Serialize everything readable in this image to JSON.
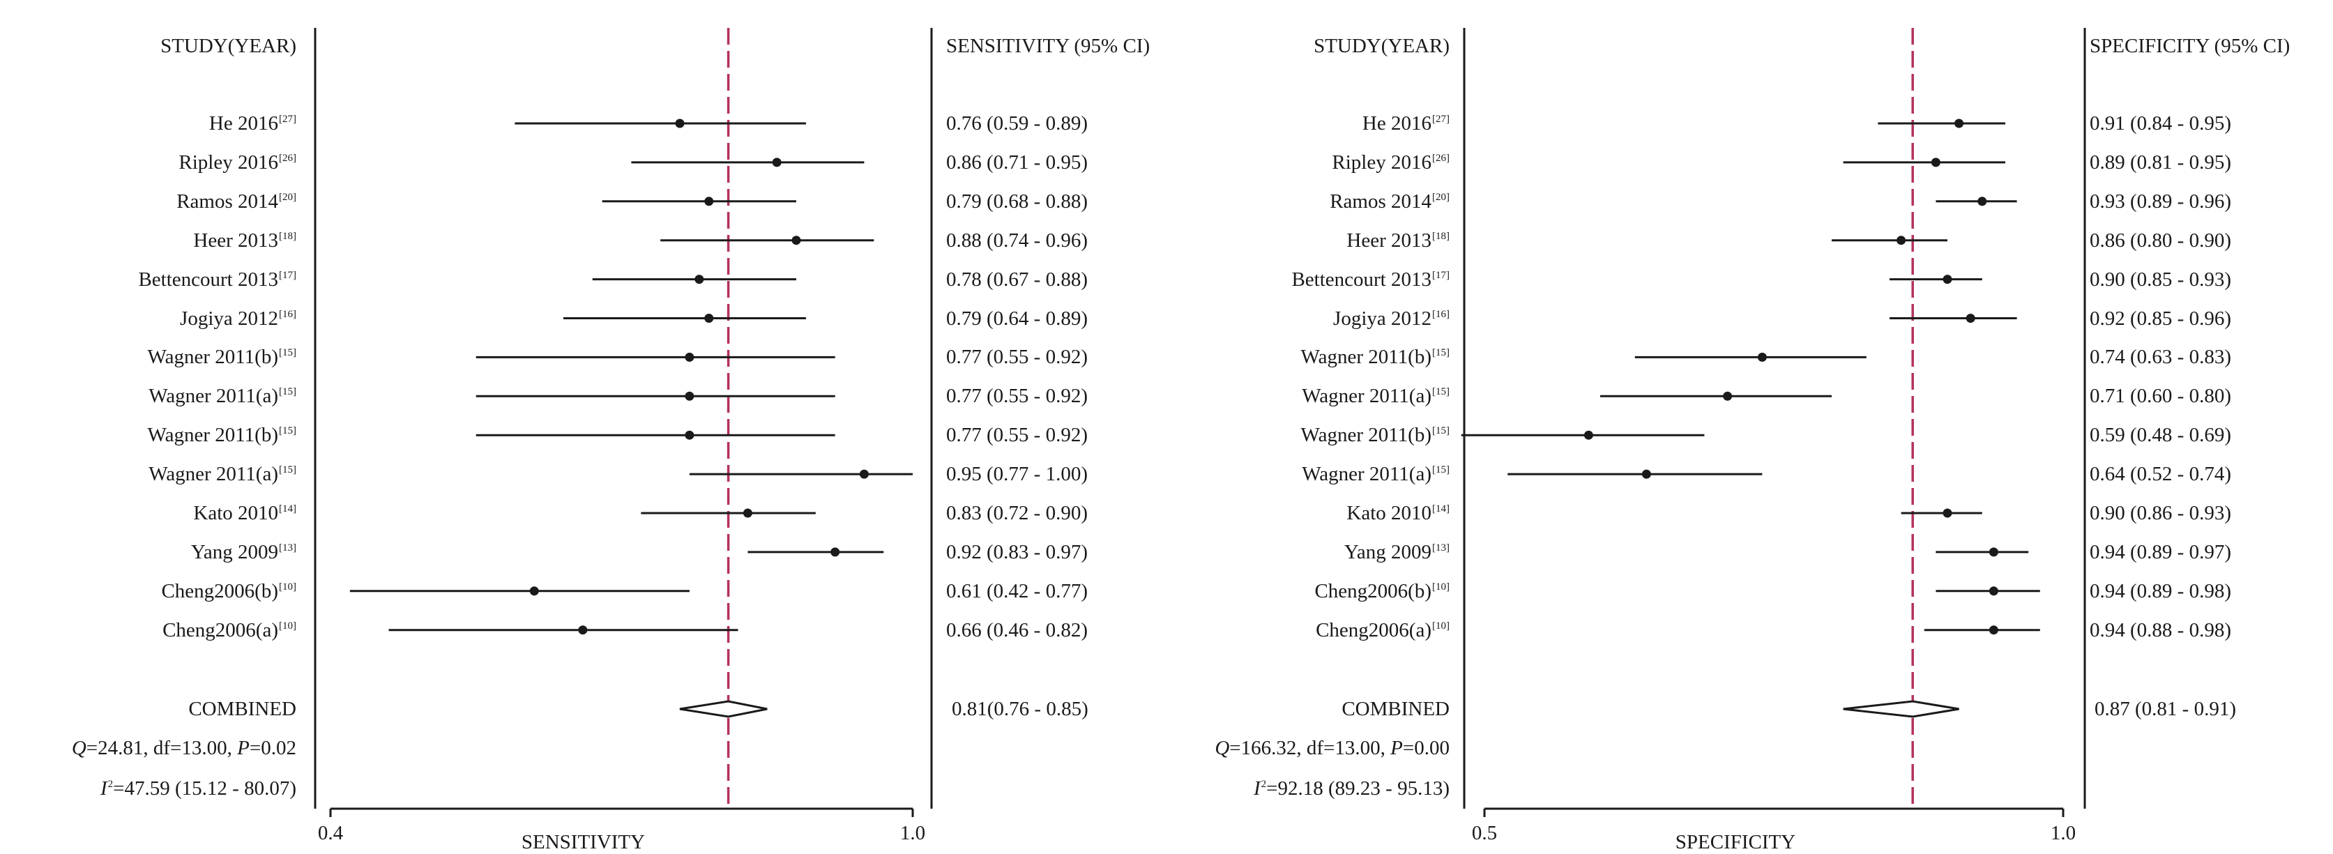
{
  "charts": [
    {
      "id": "sensitivity",
      "study_header": "STUDY(YEAR)",
      "ci_header": "SENSITIVITY (95% CI)",
      "xlabel": "SENSITIVITY",
      "xlim": [
        0.4,
        1.0
      ],
      "tick_labels": [
        "0.4",
        "1.0"
      ],
      "reference_line": 0.81,
      "rows": [
        {
          "name": "He 2016",
          "ref": "[27]",
          "estimate": 0.76,
          "lo": 0.59,
          "hi": 0.89,
          "ci_text": "0.76 (0.59 - 0.89)"
        },
        {
          "name": "Ripley 2016",
          "ref": "[26]",
          "estimate": 0.86,
          "lo": 0.71,
          "hi": 0.95,
          "ci_text": "0.86 (0.71 - 0.95)"
        },
        {
          "name": "Ramos 2014",
          "ref": "[20]",
          "estimate": 0.79,
          "lo": 0.68,
          "hi": 0.88,
          "ci_text": "0.79 (0.68 - 0.88)"
        },
        {
          "name": "Heer 2013",
          "ref": "[18]",
          "estimate": 0.88,
          "lo": 0.74,
          "hi": 0.96,
          "ci_text": "0.88 (0.74 - 0.96)"
        },
        {
          "name": "Bettencourt 2013",
          "ref": "[17]",
          "estimate": 0.78,
          "lo": 0.67,
          "hi": 0.88,
          "ci_text": "0.78 (0.67 - 0.88)"
        },
        {
          "name": "Jogiya 2012",
          "ref": "[16]",
          "estimate": 0.79,
          "lo": 0.64,
          "hi": 0.89,
          "ci_text": "0.79 (0.64 - 0.89)"
        },
        {
          "name": "Wagner 2011(b)",
          "ref": "[15]",
          "estimate": 0.77,
          "lo": 0.55,
          "hi": 0.92,
          "ci_text": "0.77 (0.55 - 0.92)"
        },
        {
          "name": "Wagner 2011(a)",
          "ref": "[15]",
          "estimate": 0.77,
          "lo": 0.55,
          "hi": 0.92,
          "ci_text": "0.77 (0.55 - 0.92)"
        },
        {
          "name": "Wagner 2011(b)",
          "ref": "[15]",
          "estimate": 0.77,
          "lo": 0.55,
          "hi": 0.92,
          "ci_text": "0.77 (0.55 - 0.92)"
        },
        {
          "name": "Wagner 2011(a)",
          "ref": "[15]",
          "estimate": 0.95,
          "lo": 0.77,
          "hi": 1.0,
          "ci_text": "0.95 (0.77 - 1.00)"
        },
        {
          "name": "Kato 2010",
          "ref": "[14]",
          "estimate": 0.83,
          "lo": 0.72,
          "hi": 0.9,
          "ci_text": "0.83 (0.72 - 0.90)"
        },
        {
          "name": "Yang 2009",
          "ref": "[13]",
          "estimate": 0.92,
          "lo": 0.83,
          "hi": 0.97,
          "ci_text": "0.92 (0.83 - 0.97)"
        },
        {
          "name": "Cheng2006(b)",
          "ref": "[10]",
          "estimate": 0.61,
          "lo": 0.42,
          "hi": 0.77,
          "ci_text": "0.61 (0.42 - 0.77)"
        },
        {
          "name": "Cheng2006(a)",
          "ref": "[10]",
          "estimate": 0.66,
          "lo": 0.46,
          "hi": 0.82,
          "ci_text": "0.66 (0.46 - 0.82)"
        }
      ],
      "combined": {
        "label": "COMBINED",
        "estimate": 0.81,
        "lo": 0.76,
        "hi": 0.85,
        "ci_text": "0.81(0.76 - 0.85)"
      },
      "heterogeneity_q": {
        "q_symbol": "Q",
        "q_rest": "=24.81, df=13.00, ",
        "p_symbol": "P",
        "p_rest": "=0.02"
      },
      "heterogeneity_i2": {
        "symbol": "I",
        "sup": "2",
        "rest": "=47.59 (15.12 - 80.07)"
      }
    },
    {
      "id": "specificity",
      "study_header": "STUDY(YEAR)",
      "ci_header": "SPECIFICITY (95% CI)",
      "xlabel": "SPECIFICITY",
      "xlim": [
        0.5,
        1.0
      ],
      "tick_labels": [
        "0.5",
        "1.0"
      ],
      "reference_line": 0.87,
      "rows": [
        {
          "name": "He 2016",
          "ref": "[27]",
          "estimate": 0.91,
          "lo": 0.84,
          "hi": 0.95,
          "ci_text": "0.91 (0.84 - 0.95)"
        },
        {
          "name": "Ripley 2016",
          "ref": "[26]",
          "estimate": 0.89,
          "lo": 0.81,
          "hi": 0.95,
          "ci_text": "0.89 (0.81 - 0.95)"
        },
        {
          "name": "Ramos 2014",
          "ref": "[20]",
          "estimate": 0.93,
          "lo": 0.89,
          "hi": 0.96,
          "ci_text": "0.93 (0.89 - 0.96)"
        },
        {
          "name": "Heer 2013",
          "ref": "[18]",
          "estimate": 0.86,
          "lo": 0.8,
          "hi": 0.9,
          "ci_text": "0.86 (0.80 - 0.90)"
        },
        {
          "name": "Bettencourt 2013",
          "ref": "[17]",
          "estimate": 0.9,
          "lo": 0.85,
          "hi": 0.93,
          "ci_text": "0.90 (0.85 - 0.93)"
        },
        {
          "name": "Jogiya 2012",
          "ref": "[16]",
          "estimate": 0.92,
          "lo": 0.85,
          "hi": 0.96,
          "ci_text": "0.92 (0.85 - 0.96)"
        },
        {
          "name": "Wagner 2011(b)",
          "ref": "[15]",
          "estimate": 0.74,
          "lo": 0.63,
          "hi": 0.83,
          "ci_text": "0.74 (0.63 - 0.83)"
        },
        {
          "name": "Wagner 2011(a)",
          "ref": "[15]",
          "estimate": 0.71,
          "lo": 0.6,
          "hi": 0.8,
          "ci_text": "0.71 (0.60 - 0.80)"
        },
        {
          "name": "Wagner 2011(b)",
          "ref": "[15]",
          "estimate": 0.59,
          "lo": 0.48,
          "hi": 0.69,
          "ci_text": "0.59 (0.48 - 0.69)"
        },
        {
          "name": "Wagner 2011(a)",
          "ref": "[15]",
          "estimate": 0.64,
          "lo": 0.52,
          "hi": 0.74,
          "ci_text": "0.64 (0.52 - 0.74)"
        },
        {
          "name": "Kato 2010",
          "ref": "[14]",
          "estimate": 0.9,
          "lo": 0.86,
          "hi": 0.93,
          "ci_text": "0.90 (0.86 - 0.93)"
        },
        {
          "name": "Yang 2009",
          "ref": "[13]",
          "estimate": 0.94,
          "lo": 0.89,
          "hi": 0.97,
          "ci_text": "0.94 (0.89 - 0.97)"
        },
        {
          "name": "Cheng2006(b)",
          "ref": "[10]",
          "estimate": 0.94,
          "lo": 0.89,
          "hi": 0.98,
          "ci_text": "0.94 (0.89 - 0.98)"
        },
        {
          "name": "Cheng2006(a)",
          "ref": "[10]",
          "estimate": 0.94,
          "lo": 0.88,
          "hi": 0.98,
          "ci_text": "0.94 (0.88 - 0.98)"
        }
      ],
      "combined": {
        "label": "COMBINED",
        "estimate": 0.87,
        "lo": 0.81,
        "hi": 0.91,
        "ci_text": "0.87 (0.81 - 0.91)"
      },
      "heterogeneity_q": {
        "q_symbol": "Q",
        "q_rest": "=166.32, df=13.00, ",
        "p_symbol": "P",
        "p_rest": "=0.00"
      },
      "heterogeneity_i2": {
        "symbol": "I",
        "sup": "2",
        "rest": "=92.18 (89.23 - 95.13)"
      }
    }
  ],
  "chart_data": [
    {
      "type": "forest",
      "xlabel": "SENSITIVITY",
      "xlim": [
        0.4,
        1.0
      ],
      "reference_line": 0.81,
      "categories": [
        "He 2016",
        "Ripley 2016",
        "Ramos 2014",
        "Heer 2013",
        "Bettencourt 2013",
        "Jogiya 2012",
        "Wagner 2011(b)",
        "Wagner 2011(a)",
        "Wagner 2011(b)",
        "Wagner 2011(a)",
        "Kato 2010",
        "Yang 2009",
        "Cheng2006(b)",
        "Cheng2006(a)",
        "COMBINED"
      ],
      "estimate": [
        0.76,
        0.86,
        0.79,
        0.88,
        0.78,
        0.79,
        0.77,
        0.77,
        0.77,
        0.95,
        0.83,
        0.92,
        0.61,
        0.66,
        0.81
      ],
      "lower": [
        0.59,
        0.71,
        0.68,
        0.74,
        0.67,
        0.64,
        0.55,
        0.55,
        0.55,
        0.77,
        0.72,
        0.83,
        0.42,
        0.46,
        0.76
      ],
      "upper": [
        0.89,
        0.95,
        0.88,
        0.96,
        0.88,
        0.89,
        0.92,
        0.92,
        0.92,
        1.0,
        0.9,
        0.97,
        0.77,
        0.82,
        0.85
      ]
    },
    {
      "type": "forest",
      "xlabel": "SPECIFICITY",
      "xlim": [
        0.5,
        1.0
      ],
      "reference_line": 0.87,
      "categories": [
        "He 2016",
        "Ripley 2016",
        "Ramos 2014",
        "Heer 2013",
        "Bettencourt 2013",
        "Jogiya 2012",
        "Wagner 2011(b)",
        "Wagner 2011(a)",
        "Wagner 2011(b)",
        "Wagner 2011(a)",
        "Kato 2010",
        "Yang 2009",
        "Cheng2006(b)",
        "Cheng2006(a)",
        "COMBINED"
      ],
      "estimate": [
        0.91,
        0.89,
        0.93,
        0.86,
        0.9,
        0.92,
        0.74,
        0.71,
        0.59,
        0.64,
        0.9,
        0.94,
        0.94,
        0.94,
        0.87
      ],
      "lower": [
        0.84,
        0.81,
        0.89,
        0.8,
        0.85,
        0.85,
        0.63,
        0.6,
        0.48,
        0.52,
        0.86,
        0.89,
        0.89,
        0.88,
        0.81
      ],
      "upper": [
        0.95,
        0.95,
        0.96,
        0.9,
        0.93,
        0.96,
        0.83,
        0.8,
        0.69,
        0.74,
        0.93,
        0.97,
        0.98,
        0.98,
        0.91
      ]
    }
  ],
  "colors": {
    "text": "#1a1a1a",
    "reference_line": "#b5325a",
    "marks": "#1a1a1a"
  }
}
